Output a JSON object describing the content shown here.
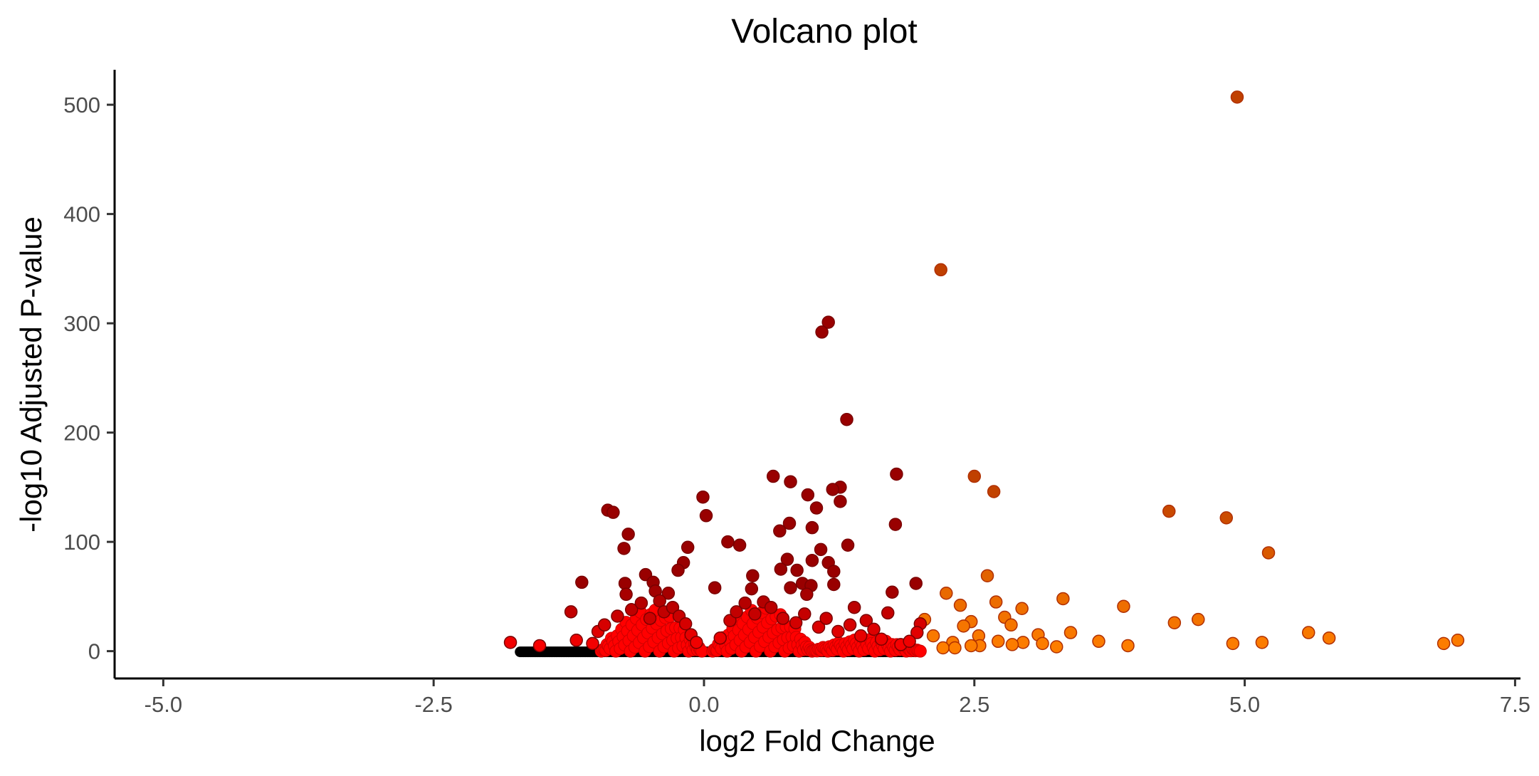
{
  "chart_data": {
    "type": "scatter",
    "title": "Volcano plot",
    "xlabel": "log2 Fold Change",
    "ylabel": "-log10 Adjusted P-value",
    "xlim": [
      -5.45,
      7.55
    ],
    "ylim": [
      -25,
      532
    ],
    "x_ticks": [
      -5.0,
      -2.5,
      0.0,
      2.5,
      5.0,
      7.5
    ],
    "x_tick_labels": [
      "-5.0",
      "-2.5",
      "0.0",
      "2.5",
      "5.0",
      "7.5"
    ],
    "y_ticks": [
      0,
      100,
      200,
      300,
      400,
      500
    ],
    "y_tick_labels": [
      "0",
      "100",
      "200",
      "300",
      "400",
      "500"
    ],
    "grid": false,
    "legend": "none",
    "colors": {
      "not_significant": "#000000",
      "significant_low": "#990000",
      "significant_high": "#ff0000",
      "large_fold_change": "#ff7f00"
    },
    "points": [
      {
        "x": 4.93,
        "y": 507
      },
      {
        "x": 2.19,
        "y": 349
      },
      {
        "x": 1.15,
        "y": 301
      },
      {
        "x": 1.09,
        "y": 292
      },
      {
        "x": 1.32,
        "y": 212
      },
      {
        "x": 1.78,
        "y": 162
      },
      {
        "x": 2.5,
        "y": 160
      },
      {
        "x": 0.64,
        "y": 160
      },
      {
        "x": 0.8,
        "y": 155
      },
      {
        "x": 1.26,
        "y": 150
      },
      {
        "x": 1.19,
        "y": 148
      },
      {
        "x": 2.68,
        "y": 146
      },
      {
        "x": 0.96,
        "y": 143
      },
      {
        "x": -0.01,
        "y": 141
      },
      {
        "x": 1.26,
        "y": 137
      },
      {
        "x": 1.04,
        "y": 131
      },
      {
        "x": -0.89,
        "y": 129
      },
      {
        "x": -0.84,
        "y": 127
      },
      {
        "x": 4.3,
        "y": 128
      },
      {
        "x": 0.02,
        "y": 124
      },
      {
        "x": 4.83,
        "y": 122
      },
      {
        "x": 1.77,
        "y": 116
      },
      {
        "x": 0.79,
        "y": 117
      },
      {
        "x": 1.0,
        "y": 113
      },
      {
        "x": 0.7,
        "y": 110
      },
      {
        "x": -0.7,
        "y": 107
      },
      {
        "x": 0.22,
        "y": 100
      },
      {
        "x": 0.33,
        "y": 97
      },
      {
        "x": 1.33,
        "y": 97
      },
      {
        "x": -0.74,
        "y": 94
      },
      {
        "x": -0.15,
        "y": 95
      },
      {
        "x": 1.08,
        "y": 93
      },
      {
        "x": 5.22,
        "y": 90
      },
      {
        "x": 0.77,
        "y": 84
      },
      {
        "x": 1.0,
        "y": 83
      },
      {
        "x": 1.15,
        "y": 81
      },
      {
        "x": -0.19,
        "y": 81
      },
      {
        "x": 0.71,
        "y": 75
      },
      {
        "x": 0.86,
        "y": 74
      },
      {
        "x": 1.2,
        "y": 73
      },
      {
        "x": -0.24,
        "y": 74
      },
      {
        "x": -0.54,
        "y": 70
      },
      {
        "x": 0.45,
        "y": 69
      },
      {
        "x": 2.62,
        "y": 69
      },
      {
        "x": -1.13,
        "y": 63
      },
      {
        "x": -0.47,
        "y": 63
      },
      {
        "x": -0.73,
        "y": 62
      },
      {
        "x": 1.2,
        "y": 61
      },
      {
        "x": 0.91,
        "y": 62
      },
      {
        "x": 0.99,
        "y": 60
      },
      {
        "x": 0.8,
        "y": 58
      },
      {
        "x": 1.96,
        "y": 62
      },
      {
        "x": 0.1,
        "y": 58
      },
      {
        "x": 0.44,
        "y": 57
      },
      {
        "x": 1.74,
        "y": 54
      },
      {
        "x": 2.24,
        "y": 53
      },
      {
        "x": 0.95,
        "y": 52
      },
      {
        "x": -0.33,
        "y": 53
      },
      {
        "x": 3.32,
        "y": 48
      },
      {
        "x": 2.7,
        "y": 45
      },
      {
        "x": -0.72,
        "y": 52
      },
      {
        "x": -0.45,
        "y": 55
      },
      {
        "x": 2.37,
        "y": 42
      },
      {
        "x": 3.88,
        "y": 41
      },
      {
        "x": 2.94,
        "y": 39
      },
      {
        "x": 1.39,
        "y": 40
      },
      {
        "x": -1.23,
        "y": 36
      },
      {
        "x": 1.7,
        "y": 35
      },
      {
        "x": 2.78,
        "y": 31
      },
      {
        "x": 2.04,
        "y": 29
      },
      {
        "x": 4.57,
        "y": 29
      },
      {
        "x": 4.35,
        "y": 26
      },
      {
        "x": 2.47,
        "y": 27
      },
      {
        "x": 2.84,
        "y": 24
      },
      {
        "x": 2.0,
        "y": 25
      },
      {
        "x": 2.4,
        "y": 23
      },
      {
        "x": 1.5,
        "y": 28
      },
      {
        "x": 3.39,
        "y": 17
      },
      {
        "x": 2.12,
        "y": 14
      },
      {
        "x": 5.59,
        "y": 17
      },
      {
        "x": 3.09,
        "y": 15
      },
      {
        "x": 2.54,
        "y": 14
      },
      {
        "x": 1.97,
        "y": 17
      },
      {
        "x": 5.78,
        "y": 12
      },
      {
        "x": 2.72,
        "y": 9
      },
      {
        "x": 3.65,
        "y": 9
      },
      {
        "x": 2.3,
        "y": 8
      },
      {
        "x": 2.95,
        "y": 8
      },
      {
        "x": 3.13,
        "y": 7
      },
      {
        "x": 2.85,
        "y": 6
      },
      {
        "x": 3.26,
        "y": 4
      },
      {
        "x": 3.92,
        "y": 5
      },
      {
        "x": 4.89,
        "y": 7
      },
      {
        "x": 5.16,
        "y": 8
      },
      {
        "x": 6.84,
        "y": 7
      },
      {
        "x": 6.97,
        "y": 10
      },
      {
        "x": 2.55,
        "y": 5
      },
      {
        "x": 2.21,
        "y": 3
      },
      {
        "x": 2.32,
        "y": 3
      },
      {
        "x": 2.47,
        "y": 5
      },
      {
        "x": -1.79,
        "y": 8
      },
      {
        "x": -1.52,
        "y": 5
      },
      {
        "x": -1.18,
        "y": 10
      },
      {
        "x": -1.03,
        "y": 7
      },
      {
        "x": -0.98,
        "y": 18
      },
      {
        "x": -0.92,
        "y": 24
      },
      {
        "x": -0.8,
        "y": 32
      },
      {
        "x": -0.67,
        "y": 38
      },
      {
        "x": -0.58,
        "y": 44
      },
      {
        "x": -0.5,
        "y": 30
      },
      {
        "x": -0.41,
        "y": 46
      },
      {
        "x": -0.37,
        "y": 36
      },
      {
        "x": -0.29,
        "y": 40
      },
      {
        "x": -0.23,
        "y": 32
      },
      {
        "x": -0.17,
        "y": 25
      },
      {
        "x": -0.12,
        "y": 15
      },
      {
        "x": -0.07,
        "y": 8
      },
      {
        "x": 0.15,
        "y": 12
      },
      {
        "x": 0.24,
        "y": 28
      },
      {
        "x": 0.3,
        "y": 36
      },
      {
        "x": 0.38,
        "y": 44
      },
      {
        "x": 0.47,
        "y": 34
      },
      {
        "x": 0.55,
        "y": 45
      },
      {
        "x": 0.62,
        "y": 40
      },
      {
        "x": 0.73,
        "y": 30
      },
      {
        "x": 0.85,
        "y": 26
      },
      {
        "x": 0.93,
        "y": 34
      },
      {
        "x": 1.06,
        "y": 22
      },
      {
        "x": 1.13,
        "y": 30
      },
      {
        "x": 1.24,
        "y": 18
      },
      {
        "x": 1.35,
        "y": 24
      },
      {
        "x": 1.45,
        "y": 14
      },
      {
        "x": 1.57,
        "y": 20
      },
      {
        "x": 1.64,
        "y": 11
      },
      {
        "x": 1.82,
        "y": 6
      },
      {
        "x": 1.9,
        "y": 9
      }
    ]
  }
}
